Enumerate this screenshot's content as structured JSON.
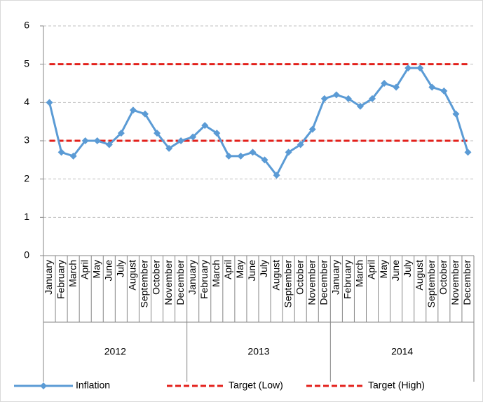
{
  "chart_data": {
    "type": "line",
    "categories": [
      "January",
      "February",
      "March",
      "April",
      "May",
      "June",
      "July",
      "August",
      "September",
      "October",
      "November",
      "December",
      "January",
      "February",
      "March",
      "April",
      "May",
      "June",
      "July",
      "August",
      "September",
      "October",
      "November",
      "December",
      "January",
      "February",
      "March",
      "April",
      "May",
      "June",
      "July",
      "August",
      "September",
      "October",
      "November",
      "December"
    ],
    "category_groups": [
      "2012",
      "2013",
      "2014"
    ],
    "series": [
      {
        "name": "Inflation",
        "color": "#5b9bd5",
        "marker": "diamond",
        "dash": false,
        "values": [
          4.0,
          2.7,
          2.6,
          3.0,
          3.0,
          2.9,
          3.2,
          3.8,
          3.7,
          3.2,
          2.8,
          3.0,
          3.1,
          3.4,
          3.2,
          2.6,
          2.6,
          2.7,
          2.5,
          2.1,
          2.7,
          2.9,
          3.3,
          4.1,
          4.2,
          4.1,
          3.9,
          4.1,
          4.5,
          4.4,
          4.9,
          4.9,
          4.4,
          4.3,
          3.7,
          2.7
        ]
      },
      {
        "name": "Target (Low)",
        "color": "#e3201b",
        "marker": "none",
        "dash": true,
        "values": [
          3,
          3,
          3,
          3,
          3,
          3,
          3,
          3,
          3,
          3,
          3,
          3,
          3,
          3,
          3,
          3,
          3,
          3,
          3,
          3,
          3,
          3,
          3,
          3,
          3,
          3,
          3,
          3,
          3,
          3,
          3,
          3,
          3,
          3,
          3,
          3
        ]
      },
      {
        "name": "Target (High)",
        "color": "#e3201b",
        "marker": "none",
        "dash": true,
        "values": [
          5,
          5,
          5,
          5,
          5,
          5,
          5,
          5,
          5,
          5,
          5,
          5,
          5,
          5,
          5,
          5,
          5,
          5,
          5,
          5,
          5,
          5,
          5,
          5,
          5,
          5,
          5,
          5,
          5,
          5,
          5,
          5,
          5,
          5,
          5,
          5
        ]
      }
    ],
    "ylim": [
      0,
      6
    ],
    "yticks": [
      0,
      1,
      2,
      3,
      4,
      5,
      6
    ],
    "grid": true,
    "legend": "bottom"
  }
}
